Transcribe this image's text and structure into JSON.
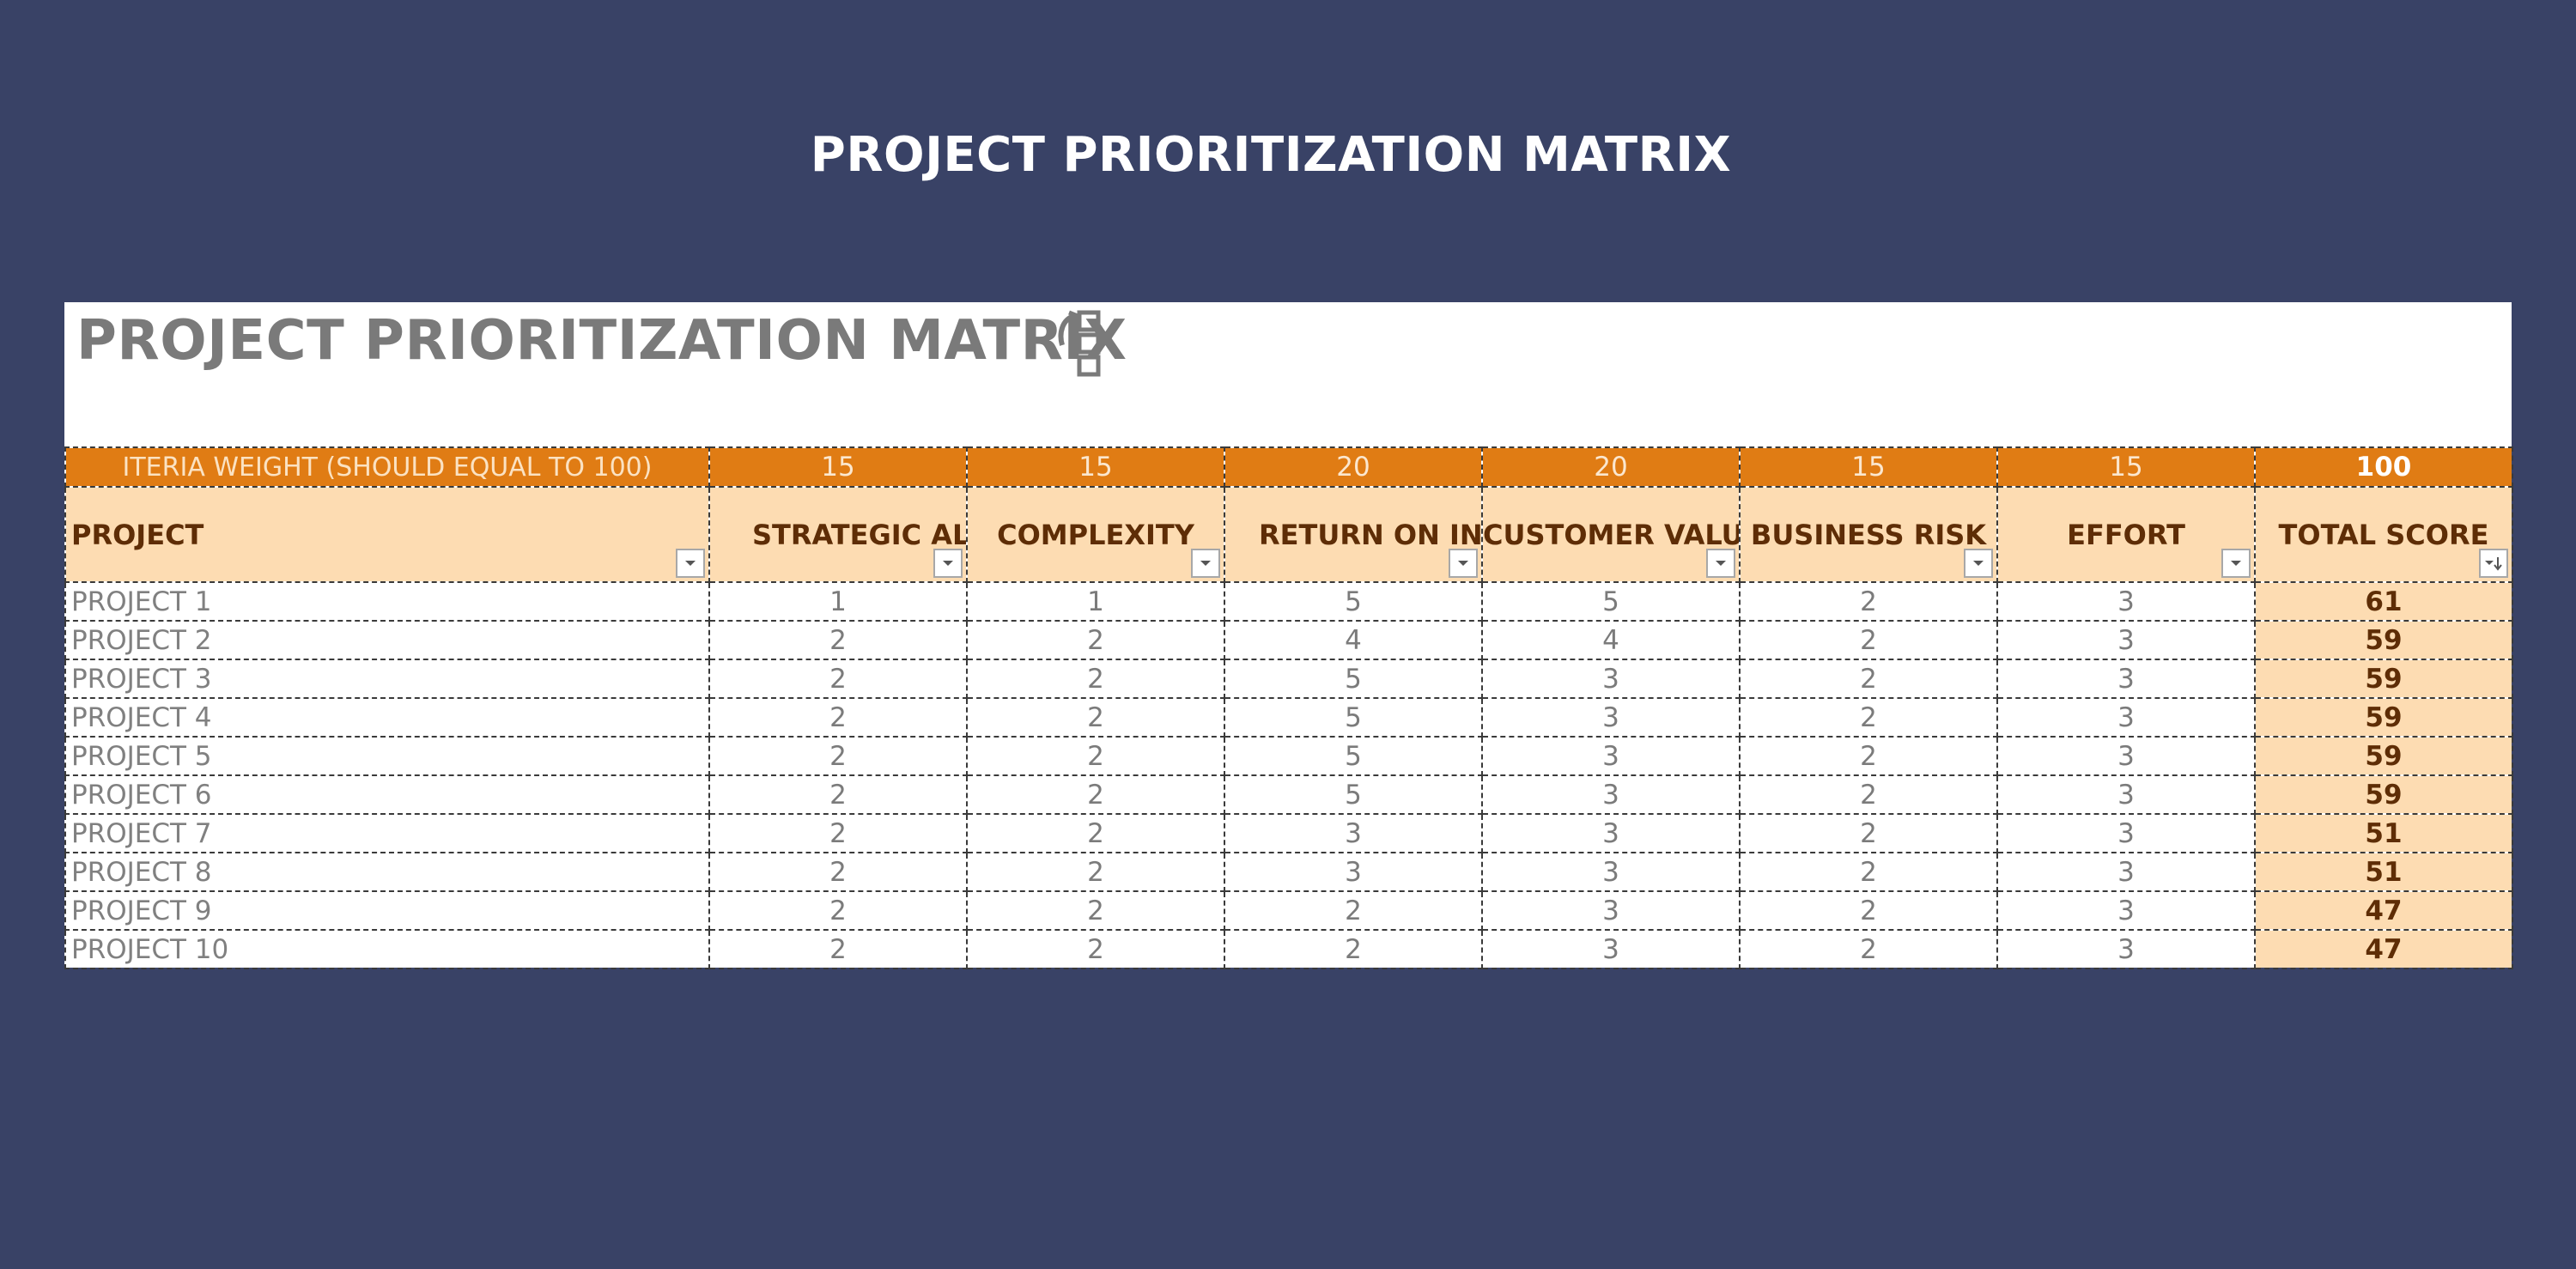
{
  "page": {
    "heading": "PROJECT PRIORITIZATION MATRIX"
  },
  "sheet": {
    "title": "PROJECT PRIORITIZATION MATRIX",
    "weight_label": "ITERIA WEIGHT (SHOULD EQUAL TO 100)",
    "weights": [
      "15",
      "15",
      "20",
      "20",
      "15",
      "15"
    ],
    "weight_total": "100",
    "headers": {
      "project": "PROJECT",
      "criteria": [
        "STRATEGIC ALIGNMENT",
        "COMPLEXITY",
        "RETURN ON INVESTMENT",
        "CUSTOMER VALUE",
        "BUSINESS RISK",
        "EFFORT"
      ],
      "total": "TOTAL SCORE"
    },
    "rows": [
      {
        "project": "PROJECT 1",
        "scores": [
          "1",
          "1",
          "5",
          "5",
          "2",
          "3"
        ],
        "total": "61"
      },
      {
        "project": "PROJECT 2",
        "scores": [
          "2",
          "2",
          "4",
          "4",
          "2",
          "3"
        ],
        "total": "59"
      },
      {
        "project": "PROJECT 3",
        "scores": [
          "2",
          "2",
          "5",
          "3",
          "2",
          "3"
        ],
        "total": "59"
      },
      {
        "project": "PROJECT 4",
        "scores": [
          "2",
          "2",
          "5",
          "3",
          "2",
          "3"
        ],
        "total": "59"
      },
      {
        "project": "PROJECT 5",
        "scores": [
          "2",
          "2",
          "5",
          "3",
          "2",
          "3"
        ],
        "total": "59"
      },
      {
        "project": "PROJECT 6",
        "scores": [
          "2",
          "2",
          "5",
          "3",
          "2",
          "3"
        ],
        "total": "59"
      },
      {
        "project": "PROJECT 7",
        "scores": [
          "2",
          "2",
          "3",
          "3",
          "2",
          "3"
        ],
        "total": "51"
      },
      {
        "project": "PROJECT 8",
        "scores": [
          "2",
          "2",
          "3",
          "3",
          "2",
          "3"
        ],
        "total": "51"
      },
      {
        "project": "PROJECT 9",
        "scores": [
          "2",
          "2",
          "2",
          "3",
          "2",
          "3"
        ],
        "total": "47"
      },
      {
        "project": "PROJECT 10",
        "scores": [
          "2",
          "2",
          "2",
          "3",
          "2",
          "3"
        ],
        "total": "47"
      }
    ]
  },
  "icons": {
    "title_icon": "table-layout-icon",
    "filter_icon": "filter-dropdown-icon",
    "sort_icon": "sort-descending-icon"
  },
  "colors": {
    "background": "#394266",
    "weight_row": "#e07c14",
    "header_fill": "#fddcb2",
    "header_text": "#5e2d06",
    "cell_text": "#7b7b7b"
  }
}
